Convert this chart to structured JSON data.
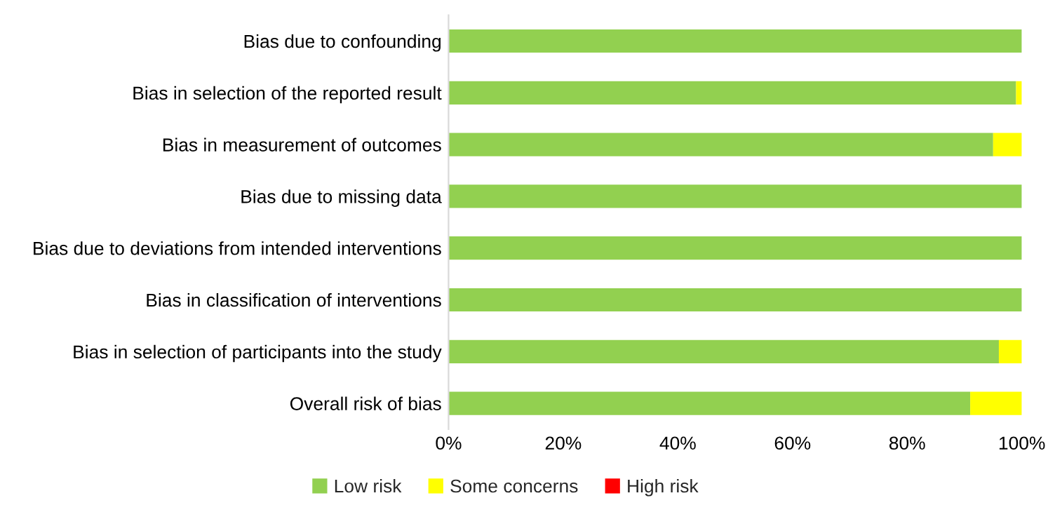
{
  "chart_data": {
    "type": "bar",
    "orientation": "horizontal",
    "stacked": true,
    "categories": [
      "Bias due to confounding",
      "Bias in selection of the reported result",
      "Bias in measurement of outcomes",
      "Bias due to missing data",
      "Bias due to deviations from intended interventions",
      "Bias in classification of interventions",
      "Bias in selection of participants into the study",
      "Overall risk of bias"
    ],
    "series": [
      {
        "name": "Low risk",
        "color": "#92d050",
        "values": [
          100,
          99,
          95,
          100,
          100,
          100,
          96,
          91
        ]
      },
      {
        "name": "Some concerns",
        "color": "#ffff00",
        "values": [
          0,
          1,
          5,
          0,
          0,
          0,
          4,
          9
        ]
      },
      {
        "name": "High risk",
        "color": "#ff0000",
        "values": [
          0,
          0,
          0,
          0,
          0,
          0,
          0,
          0
        ]
      }
    ],
    "xlim": [
      0,
      100
    ],
    "xticks": [
      {
        "value": 0,
        "label": "0%"
      },
      {
        "value": 20,
        "label": "20%"
      },
      {
        "value": 40,
        "label": "40%"
      },
      {
        "value": 60,
        "label": "60%"
      },
      {
        "value": 80,
        "label": "80%"
      },
      {
        "value": 100,
        "label": "100%"
      }
    ],
    "grid": false,
    "legend": "bottom"
  }
}
